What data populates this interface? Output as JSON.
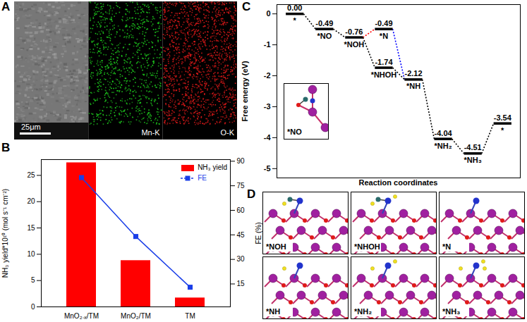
{
  "chart_data": [
    {
      "panel": "B",
      "type": "bar",
      "categories": [
        "MnO₂₋ₓ/TM",
        "MnO₂/TM",
        "TM"
      ],
      "ylabel": "NH₃ yield*10¹⁰ (mol s⁻¹ cm⁻²)",
      "y2label": "FE (%)",
      "ylim": [
        0,
        28
      ],
      "yticks": [
        0,
        5,
        10,
        15,
        20,
        25
      ],
      "y2lim": [
        1,
        91
      ],
      "y2ticks": [
        15,
        30,
        45,
        60,
        75,
        90
      ],
      "legend": "upper right",
      "series": [
        {
          "name": "NH₃ yield",
          "type": "bar",
          "color": "#ff0000",
          "values": [
            27.4,
            8.8,
            1.7
          ]
        },
        {
          "name": "FE",
          "type": "line",
          "axis": "y2",
          "color": "#1a3ee8",
          "marker": "square",
          "values": [
            80,
            44,
            13
          ]
        }
      ]
    },
    {
      "panel": "C",
      "type": "energy_diagram",
      "ylabel": "Free energy (eV)",
      "xlabel": "Reaction coordinates",
      "ylim": [
        -5.3,
        0.3
      ],
      "yticks": [
        0,
        -1,
        -2,
        -3,
        -4,
        -5
      ],
      "tick_labels": "y",
      "color": "#000000",
      "line_style": "dotted",
      "inset_label": "*NO",
      "steps": [
        [
          {
            "name": "*",
            "value": 0,
            "value_label": "0.00"
          }
        ],
        [
          {
            "name": "*NO",
            "value": -0.49
          }
        ],
        [
          {
            "name": "*NOH",
            "value": -0.76
          }
        ],
        [
          {
            "name": "*N",
            "value": -0.49,
            "colors": [
              "#ff0000",
              "#0000ff"
            ]
          },
          {
            "name": "*NHOH",
            "value": -1.74
          }
        ],
        [
          {
            "name": "*NH",
            "value": -2.12
          }
        ],
        [
          {
            "name": "*NH₂",
            "value": -4.04
          }
        ],
        [
          {
            "name": "*NH₃",
            "value": -4.51
          }
        ],
        [
          {
            "name": "*",
            "value": -3.54
          }
        ]
      ]
    }
  ],
  "images": [
    {
      "panel": "A",
      "type": "image",
      "scale_bar": "25μm",
      "maps": [
        {
          "label": "Mn-K",
          "color": "#1fd11f"
        },
        {
          "label": "O-K",
          "color": "#e01a1a"
        }
      ]
    },
    {
      "panel": "D",
      "type": "image",
      "structures": [
        "*NOH",
        "*NHOH",
        "*N",
        "*NH",
        "*NH₂",
        "*NH₃"
      ]
    }
  ]
}
